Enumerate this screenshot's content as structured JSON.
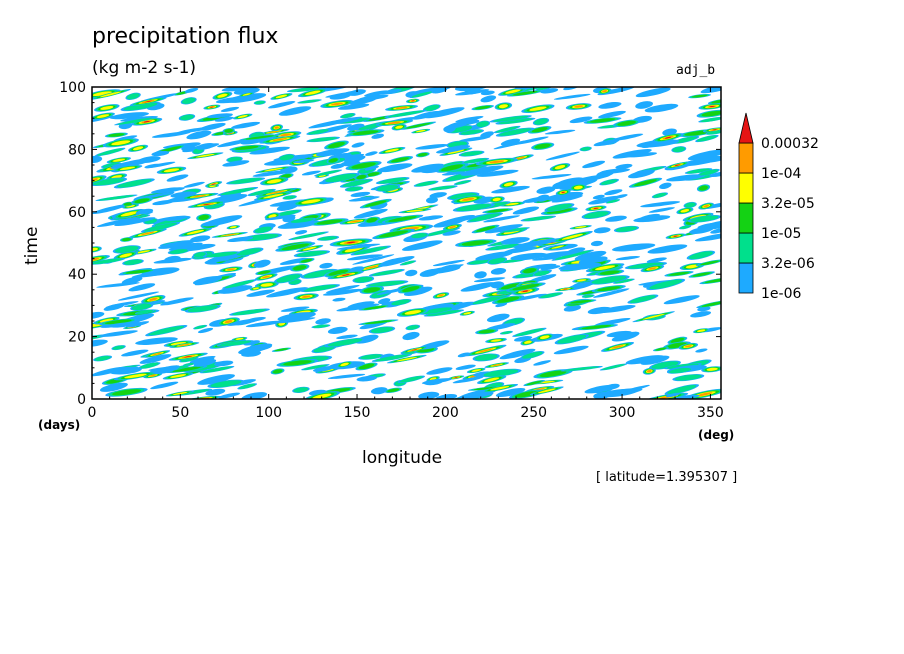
{
  "header": {
    "title": "precipitation flux",
    "units": "(kg m-2 s-1)",
    "run_label": "adj_b"
  },
  "footer": {
    "note": "[ latitude=1.395307 ]"
  },
  "chart_data": {
    "type": "heatmap",
    "title": "precipitation flux",
    "subtitle": "(kg m-2 s-1)",
    "xlabel": "longitude",
    "ylabel": "time",
    "x_unit": "(deg)",
    "y_unit": "(days)",
    "xlim": [
      0,
      356
    ],
    "ylim": [
      0,
      100
    ],
    "x_ticks": [
      0,
      50,
      100,
      150,
      200,
      250,
      300,
      350
    ],
    "y_ticks": [
      0,
      20,
      40,
      60,
      80,
      100
    ],
    "colorbar": {
      "levels": [
        "1e-06",
        "3.2e-06",
        "1e-05",
        "3.2e-05",
        "1e-04",
        "0.00032"
      ],
      "colors": [
        "#1eaaff",
        "#00e08c",
        "#14d214",
        "#ffff00",
        "#ff9b00",
        "#e61414"
      ],
      "extend": "max"
    },
    "pattern": "eastward-propagating precipitation streaks (rain bands tilted upward toward increasing longitude)"
  }
}
